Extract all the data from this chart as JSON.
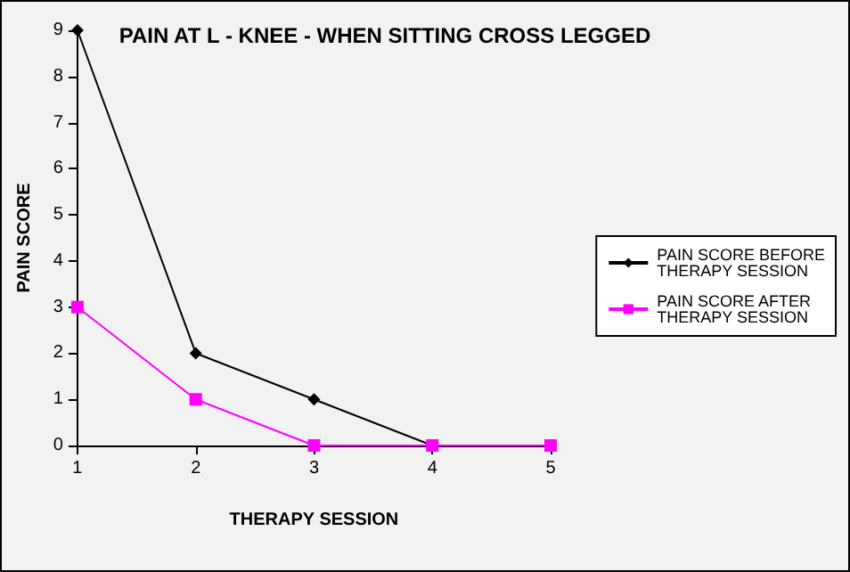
{
  "chart_data": {
    "type": "line",
    "title": "PAIN AT L - KNEE - WHEN SITTING CROSS LEGGED",
    "xlabel": "THERAPY SESSION",
    "ylabel": "PAIN SCORE",
    "x": [
      1,
      2,
      3,
      4,
      5
    ],
    "xlim": [
      1,
      5
    ],
    "xticks": [
      1,
      2,
      3,
      4,
      5
    ],
    "ylim": [
      0,
      9
    ],
    "yticks": [
      0,
      1,
      2,
      3,
      4,
      5,
      6,
      7,
      8,
      9
    ],
    "grid": false,
    "legend": "right",
    "series": [
      {
        "name": "PAIN SCORE BEFORE\nTHERAPY SESSION",
        "color": "#000000",
        "marker": "diamond",
        "values": [
          9,
          2,
          1,
          0,
          null
        ]
      },
      {
        "name": "PAIN SCORE AFTER\nTHERAPY SESSION",
        "color": "#ff00ff",
        "marker": "square",
        "values": [
          3,
          1,
          0,
          0,
          0
        ]
      }
    ]
  }
}
